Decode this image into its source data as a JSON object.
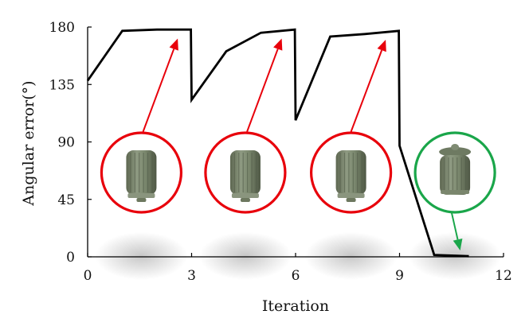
{
  "chart_data": {
    "type": "line",
    "xlabel": "Iteration",
    "ylabel": "Angular error(°)",
    "xlim": [
      0,
      12
    ],
    "ylim": [
      0,
      180
    ],
    "xticks": [
      0,
      3,
      6,
      9,
      12
    ],
    "yticks": [
      0,
      45,
      90,
      135,
      180
    ],
    "xtick_labels": [
      "0",
      "3",
      "6",
      "9",
      "12"
    ],
    "ytick_labels": [
      "0",
      "45",
      "90",
      "135",
      "180"
    ],
    "grid": false,
    "series": [
      {
        "color": "#000000",
        "points": [
          [
            0,
            138
          ],
          [
            1,
            177
          ],
          [
            2,
            178
          ],
          [
            2.98,
            178
          ],
          [
            3,
            123
          ],
          [
            4,
            161
          ],
          [
            5,
            175.5
          ],
          [
            5.98,
            178
          ],
          [
            6,
            107
          ],
          [
            7,
            172.5
          ],
          [
            8,
            174.5
          ],
          [
            8.98,
            177
          ],
          [
            9,
            87
          ],
          [
            10,
            1.5
          ],
          [
            11,
            0.5
          ]
        ]
      }
    ],
    "annotations": [
      {
        "object_x": 1.55,
        "object_y": 66,
        "arrow_from": [
          1.6,
          98
        ],
        "arrow_to": [
          2.6,
          171
        ],
        "color": "#e8000b"
      },
      {
        "object_x": 4.55,
        "object_y": 66,
        "arrow_from": [
          4.6,
          98
        ],
        "arrow_to": [
          5.6,
          171
        ],
        "color": "#e8000b"
      },
      {
        "object_x": 7.6,
        "object_y": 66,
        "arrow_from": [
          7.6,
          98
        ],
        "arrow_to": [
          8.6,
          170
        ],
        "color": "#e8000b"
      },
      {
        "object_x": 10.6,
        "object_y": 66,
        "arrow_from": [
          10.5,
          35
        ],
        "arrow_to": [
          10.75,
          5
        ],
        "color": "#1aa64a"
      }
    ]
  }
}
